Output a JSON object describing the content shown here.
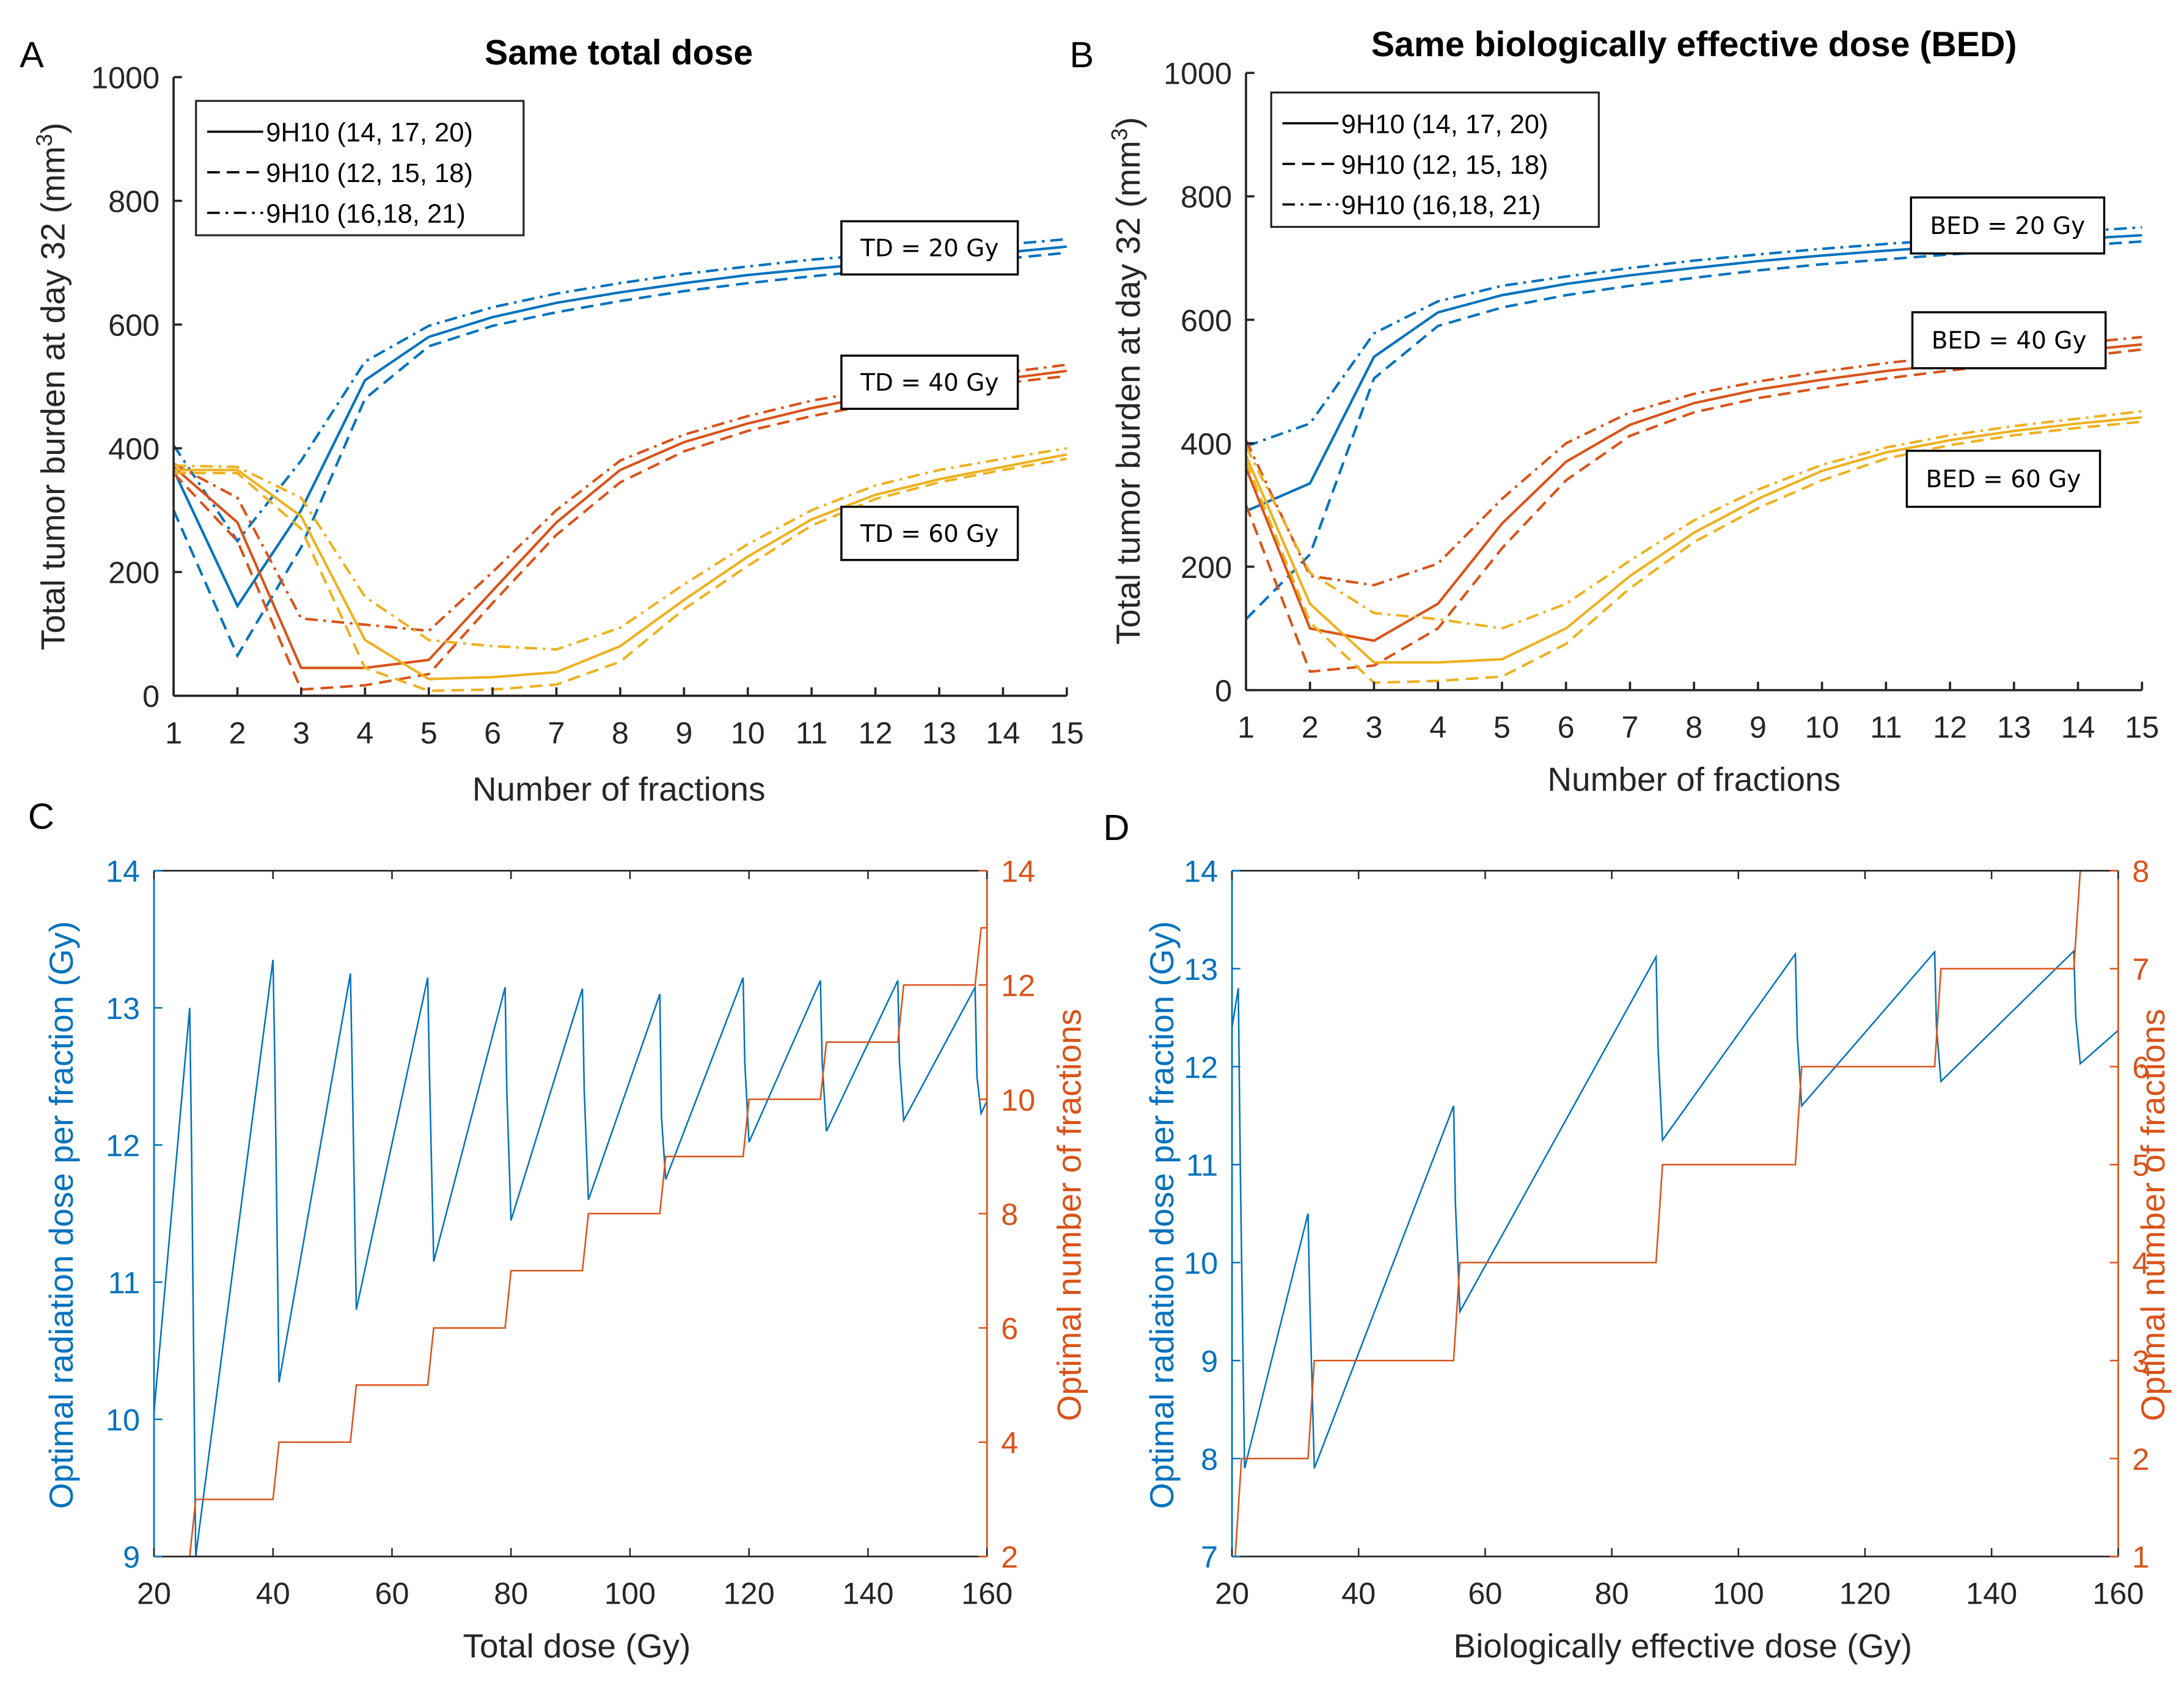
{
  "colors": {
    "blue": "#0072BD",
    "orange": "#D95319",
    "yellow": "#EDB120",
    "axis": "#262626"
  },
  "chart_data": [
    {
      "id": "A",
      "panel_label": "A",
      "type": "line",
      "title": "Same total dose",
      "xlabel": "Number of fractions",
      "ylabel": "Total tumor burden at day 32 (mm",
      "ylabel_sup": "3",
      "ylabel_close": ")",
      "xlim": [
        1,
        15
      ],
      "ylim": [
        0,
        1000
      ],
      "xticks": [
        1,
        2,
        3,
        4,
        5,
        6,
        7,
        8,
        9,
        10,
        11,
        12,
        13,
        14,
        15
      ],
      "yticks": [
        0,
        200,
        400,
        600,
        800,
        1000
      ],
      "grid": false,
      "legend": {
        "placement": "top-left",
        "entries": [
          {
            "label": "9H10 (14, 17, 20)",
            "style": "solid"
          },
          {
            "label": "9H10 (12, 15, 18)",
            "style": "dashed"
          },
          {
            "label": "9H10 (16,18, 21)",
            "style": "dashdot"
          }
        ]
      },
      "annotations": [
        {
          "text": "TD = 20 Gy",
          "near_group": "20"
        },
        {
          "text": "TD = 40 Gy",
          "near_group": "40"
        },
        {
          "text": "TD = 60 Gy",
          "near_group": "60"
        }
      ],
      "x": [
        1,
        2,
        3,
        4,
        5,
        6,
        7,
        8,
        9,
        10,
        11,
        12,
        13,
        14,
        15
      ],
      "series": [
        {
          "name": "TD 20 Gy - 9H10 (14, 17, 20)",
          "color": "blue",
          "style": "solid",
          "values": [
            365,
            145,
            300,
            510,
            580,
            612,
            635,
            652,
            667,
            680,
            690,
            699,
            708,
            716,
            726
          ]
        },
        {
          "name": "TD 20 Gy - 9H10 (12, 15, 18)",
          "color": "blue",
          "style": "dashed",
          "values": [
            300,
            65,
            240,
            480,
            565,
            598,
            620,
            638,
            654,
            667,
            678,
            688,
            697,
            706,
            716
          ]
        },
        {
          "name": "TD 20 Gy - 9H10 (16,18, 21)",
          "color": "blue",
          "style": "dashdot",
          "values": [
            405,
            250,
            380,
            540,
            598,
            628,
            650,
            667,
            682,
            694,
            705,
            713,
            721,
            729,
            738
          ]
        },
        {
          "name": "TD 40 Gy - 9H10 (14, 17, 20)",
          "color": "orange",
          "style": "solid",
          "values": [
            370,
            280,
            45,
            45,
            58,
            170,
            280,
            365,
            410,
            440,
            465,
            485,
            500,
            512,
            525
          ]
        },
        {
          "name": "TD 40 Gy - 9H10 (12, 15, 18)",
          "color": "orange",
          "style": "dashed",
          "values": [
            360,
            250,
            10,
            17,
            35,
            150,
            260,
            345,
            395,
            428,
            452,
            472,
            490,
            505,
            517
          ]
        },
        {
          "name": "TD 40 Gy - 9H10 (16,18, 21)",
          "color": "orange",
          "style": "dashdot",
          "values": [
            375,
            320,
            125,
            115,
            105,
            200,
            300,
            380,
            422,
            452,
            477,
            495,
            510,
            522,
            535
          ]
        },
        {
          "name": "TD 60 Gy - 9H10 (14, 17, 20)",
          "color": "yellow",
          "style": "solid",
          "values": [
            365,
            365,
            290,
            90,
            27,
            30,
            38,
            80,
            155,
            225,
            285,
            325,
            350,
            370,
            390
          ]
        },
        {
          "name": "TD 60 Gy - 9H10 (12, 15, 18)",
          "color": "yellow",
          "style": "dashed",
          "values": [
            360,
            360,
            270,
            45,
            8,
            10,
            18,
            55,
            140,
            210,
            275,
            318,
            345,
            365,
            383
          ]
        },
        {
          "name": "TD 60 Gy - 9H10 (16,18, 21)",
          "color": "yellow",
          "style": "dashdot",
          "values": [
            372,
            370,
            320,
            160,
            90,
            80,
            75,
            110,
            180,
            245,
            300,
            340,
            365,
            383,
            400
          ]
        }
      ]
    },
    {
      "id": "B",
      "panel_label": "B",
      "type": "line",
      "title": "Same biologically effective dose (BED)",
      "xlabel": "Number of fractions",
      "ylabel": "Total tumor burden at day 32 (mm",
      "ylabel_sup": "3",
      "ylabel_close": ")",
      "xlim": [
        1,
        15
      ],
      "ylim": [
        0,
        1000
      ],
      "xticks": [
        1,
        2,
        3,
        4,
        5,
        6,
        7,
        8,
        9,
        10,
        11,
        12,
        13,
        14,
        15
      ],
      "yticks": [
        0,
        200,
        400,
        600,
        800,
        1000
      ],
      "grid": false,
      "legend": {
        "placement": "top-left",
        "entries": [
          {
            "label": "9H10 (14, 17, 20)",
            "style": "solid"
          },
          {
            "label": "9H10 (12, 15, 18)",
            "style": "dashed"
          },
          {
            "label": "9H10 (16,18, 21)",
            "style": "dashdot"
          }
        ]
      },
      "annotations": [
        {
          "text": "BED = 20 Gy",
          "near_group": "20"
        },
        {
          "text": "BED = 40 Gy",
          "near_group": "40"
        },
        {
          "text": "BED = 60 Gy",
          "near_group": "60"
        }
      ],
      "x": [
        1,
        2,
        3,
        4,
        5,
        6,
        7,
        8,
        9,
        10,
        11,
        12,
        13,
        14,
        15
      ],
      "series": [
        {
          "name": "BED 20 Gy - 9H10 (14, 17, 20)",
          "color": "blue",
          "style": "solid",
          "values": [
            290,
            335,
            540,
            612,
            640,
            658,
            672,
            684,
            695,
            704,
            712,
            719,
            725,
            731,
            737
          ]
        },
        {
          "name": "BED 20 Gy - 9H10 (12, 15, 18)",
          "color": "blue",
          "style": "dashed",
          "values": [
            115,
            220,
            505,
            590,
            620,
            640,
            655,
            668,
            680,
            690,
            698,
            706,
            713,
            720,
            727
          ]
        },
        {
          "name": "BED 20 Gy - 9H10 (16,18, 21)",
          "color": "blue",
          "style": "dashdot",
          "values": [
            395,
            432,
            578,
            630,
            655,
            670,
            684,
            696,
            706,
            715,
            723,
            730,
            737,
            743,
            750
          ]
        },
        {
          "name": "BED 40 Gy - 9H10 (14, 17, 20)",
          "color": "orange",
          "style": "solid",
          "values": [
            360,
            100,
            80,
            140,
            270,
            370,
            430,
            465,
            487,
            503,
            517,
            528,
            540,
            550,
            560
          ]
        },
        {
          "name": "BED 40 Gy - 9H10 (12, 15, 18)",
          "color": "orange",
          "style": "dashed",
          "values": [
            300,
            30,
            40,
            100,
            230,
            340,
            412,
            450,
            473,
            490,
            505,
            518,
            530,
            540,
            552
          ]
        },
        {
          "name": "BED 40 Gy - 9H10 (16,18, 21)",
          "color": "orange",
          "style": "dashdot",
          "values": [
            405,
            185,
            170,
            205,
            310,
            400,
            450,
            480,
            500,
            516,
            530,
            541,
            552,
            562,
            572
          ]
        },
        {
          "name": "BED 60 Gy - 9H10 (14, 17, 20)",
          "color": "yellow",
          "style": "solid",
          "values": [
            380,
            140,
            45,
            45,
            50,
            100,
            185,
            255,
            310,
            355,
            385,
            405,
            420,
            432,
            442
          ]
        },
        {
          "name": "BED 60 Gy - 9H10 (12, 15, 18)",
          "color": "yellow",
          "style": "dashed",
          "values": [
            370,
            110,
            12,
            15,
            22,
            75,
            165,
            240,
            295,
            340,
            375,
            397,
            413,
            425,
            435
          ]
        },
        {
          "name": "BED 60 Gy - 9H10 (16,18, 21)",
          "color": "yellow",
          "style": "dashdot",
          "values": [
            395,
            190,
            125,
            115,
            100,
            140,
            210,
            275,
            325,
            365,
            393,
            413,
            428,
            440,
            452
          ]
        }
      ]
    },
    {
      "id": "C",
      "panel_label": "C",
      "type": "line",
      "title": "",
      "xlabel": "Total dose (Gy)",
      "ylabel_left": "Optimal radiation dose per fraction (Gy)",
      "ylabel_right": "Optimal number of fractions",
      "xlim": [
        20,
        160
      ],
      "ylim_left": [
        9,
        14
      ],
      "ylim_right": [
        2,
        14
      ],
      "xticks": [
        20,
        40,
        60,
        80,
        100,
        120,
        140,
        160
      ],
      "yticks_left": [
        9,
        10,
        11,
        12,
        13,
        14
      ],
      "yticks_right": [
        2,
        4,
        6,
        8,
        10,
        12,
        14
      ],
      "grid": false,
      "series": [
        {
          "name": "Optimal radiation dose per fraction",
          "axis": "left",
          "color": "blue",
          "x": [
            20,
            26,
            26.3,
            27,
            40,
            40.3,
            41,
            53,
            53.3,
            54,
            66,
            66.3,
            67,
            79,
            79.3,
            80,
            92,
            92.3,
            93,
            105,
            105.3,
            106,
            119,
            119.3,
            120,
            132,
            132.3,
            133,
            145,
            145.3,
            146,
            158,
            158.3,
            159,
            160
          ],
          "values": [
            10.05,
            13.0,
            12.0,
            9.0,
            13.35,
            12.6,
            10.27,
            13.25,
            12.6,
            10.8,
            13.22,
            12.5,
            11.15,
            13.15,
            12.4,
            11.45,
            13.14,
            12.4,
            11.6,
            13.1,
            12.2,
            11.75,
            13.22,
            12.6,
            12.02,
            13.2,
            12.6,
            12.1,
            13.2,
            12.6,
            12.18,
            13.15,
            12.5,
            12.23,
            12.32
          ]
        },
        {
          "name": "Optimal number of fractions",
          "axis": "right",
          "color": "orange",
          "x": [
            20,
            26,
            27,
            40,
            41,
            53,
            54,
            66,
            67,
            79,
            80,
            92,
            93,
            105,
            106,
            119,
            120,
            132,
            133,
            145,
            146,
            158,
            159,
            160
          ],
          "values": [
            2,
            2,
            3,
            3,
            4,
            4,
            5,
            5,
            6,
            6,
            7,
            7,
            8,
            8,
            9,
            9,
            10,
            10,
            11,
            11,
            12,
            12,
            13,
            13
          ]
        }
      ]
    },
    {
      "id": "D",
      "panel_label": "D",
      "type": "line",
      "title": "",
      "xlabel": "Biologically effective dose (Gy)",
      "ylabel_left": "Optimal radiation dose per fraction (Gy)",
      "ylabel_right": "Optimal number of fractions",
      "xlim": [
        20,
        160
      ],
      "ylim_left": [
        7,
        14
      ],
      "ylim_right": [
        1,
        8
      ],
      "xticks": [
        20,
        40,
        60,
        80,
        100,
        120,
        140,
        160
      ],
      "yticks_left": [
        7,
        8,
        9,
        10,
        11,
        12,
        13,
        14
      ],
      "yticks_right": [
        1,
        2,
        3,
        4,
        5,
        6,
        7,
        8
      ],
      "grid": false,
      "series": [
        {
          "name": "Optimal radiation dose per fraction",
          "axis": "left",
          "color": "blue",
          "x": [
            20,
            21,
            21.3,
            22,
            32,
            32.3,
            33,
            55,
            55.3,
            56,
            87,
            87.3,
            88,
            109,
            109.3,
            110,
            131,
            131.3,
            132,
            153,
            153.3,
            154,
            160
          ],
          "values": [
            12.4,
            12.8,
            11.0,
            7.9,
            10.5,
            9.6,
            7.9,
            11.6,
            10.6,
            9.5,
            13.12,
            12.2,
            11.25,
            13.15,
            12.3,
            11.6,
            13.17,
            12.4,
            11.85,
            13.18,
            12.5,
            12.03,
            12.37
          ]
        },
        {
          "name": "Optimal number of fractions",
          "axis": "right",
          "color": "orange",
          "x": [
            20,
            20.5,
            21.5,
            32,
            33,
            55,
            56,
            87,
            88,
            109,
            110,
            131,
            132,
            153,
            154,
            160
          ],
          "values": [
            1,
            1,
            2,
            2,
            3,
            3,
            4,
            4,
            5,
            5,
            6,
            6,
            7,
            7,
            8,
            8
          ]
        }
      ]
    }
  ]
}
